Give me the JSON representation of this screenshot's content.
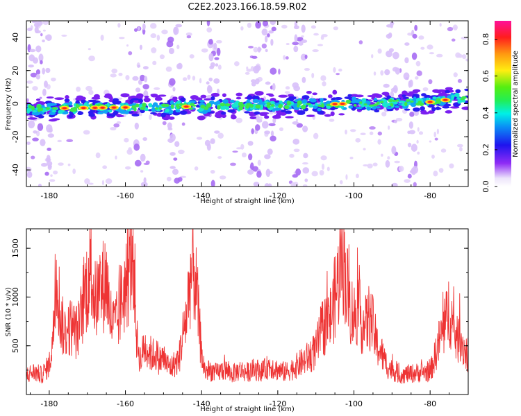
{
  "title": "C2E2.2023.166.18.59.R02",
  "chart_data": [
    {
      "type": "heatmap",
      "xlabel": "Height of straight line (km)",
      "ylabel": "Frequency (Hz)",
      "xlim": [
        -186,
        -70
      ],
      "ylim": [
        -50,
        50
      ],
      "xticks": [
        -180,
        -160,
        -140,
        -120,
        -100,
        -80
      ],
      "yticks": [
        -40,
        -20,
        0,
        20,
        40
      ],
      "colorbar": {
        "label": "Normalized spectral amplitude",
        "range": [
          0.0,
          0.9
        ],
        "ticks": [
          0.0,
          0.2,
          0.4,
          0.6,
          0.8
        ],
        "colormap": "rainbow (white - purple - blue - cyan - green - yellow - orange - red - magenta)"
      },
      "features": {
        "main_band": {
          "description": "horizontal band near 0 Hz spanning full height range",
          "frequency_offset_hz": [
            [
              -186,
              -3
            ],
            [
              -150,
              -2
            ],
            [
              -120,
              -1
            ],
            [
              -100,
              0
            ],
            [
              -80,
              1
            ],
            [
              -70,
              4
            ]
          ],
          "high_amplitude_km": [
            -176,
            -171,
            -168,
            -166,
            -163,
            -160,
            -144,
            -105,
            -103,
            -80,
            -76
          ]
        },
        "vertical_streaks_km": [
          -184,
          -181,
          -156,
          -147,
          -137,
          -126,
          -122,
          -114,
          -90,
          -85
        ]
      }
    },
    {
      "type": "line",
      "xlabel": "Height of straight line (km)",
      "ylabel": "SNR (10 * v/v)",
      "xlim": [
        -186,
        -70
      ],
      "ylim": [
        0,
        1700
      ],
      "xticks": [
        -180,
        -160,
        -140,
        -120,
        -100,
        -80
      ],
      "yticks": [
        500,
        1000,
        1500
      ],
      "line_color": "#ee3333",
      "series": [
        {
          "x": [
            -186,
            -184,
            -182,
            -180,
            -179,
            -178,
            -177,
            -176,
            -175,
            -174,
            -173,
            -172,
            -171,
            -170,
            -169,
            -168,
            -167,
            -166,
            -165,
            -164,
            -163,
            -162,
            -161,
            -160,
            -159,
            -158,
            -157,
            -156,
            -155,
            -154,
            -153,
            -152,
            -151,
            -150,
            -149,
            -148,
            -147,
            -146,
            -145,
            -144,
            -143,
            -142,
            -141,
            -140,
            -139,
            -138,
            -136,
            -134,
            -132,
            -130,
            -128,
            -126,
            -124,
            -122,
            -120,
            -118,
            -116,
            -114,
            -112,
            -110,
            -109,
            -108,
            -107,
            -106,
            -105,
            -104,
            -103,
            -102,
            -101,
            -100,
            -99,
            -98,
            -97,
            -96,
            -95,
            -94,
            -93,
            -92,
            -91,
            -90,
            -89,
            -88,
            -86,
            -84,
            -82,
            -80,
            -79,
            -78,
            -77,
            -76,
            -75,
            -74,
            -73,
            -72,
            -71,
            -70
          ],
          "y": [
            200,
            230,
            200,
            300,
            600,
            1300,
            750,
            650,
            680,
            700,
            640,
            700,
            980,
            1150,
            1300,
            950,
            1050,
            1100,
            1200,
            800,
            700,
            750,
            1000,
            1100,
            1250,
            1600,
            550,
            350,
            500,
            450,
            400,
            420,
            350,
            380,
            300,
            280,
            320,
            350,
            600,
            800,
            1200,
            1300,
            900,
            400,
            230,
            250,
            220,
            260,
            210,
            250,
            230,
            260,
            240,
            300,
            250,
            230,
            270,
            320,
            380,
            450,
            600,
            700,
            750,
            800,
            1000,
            1200,
            1500,
            1150,
            900,
            800,
            900,
            750,
            700,
            800,
            700,
            500,
            450,
            350,
            280,
            250,
            230,
            200,
            210,
            220,
            230,
            230,
            350,
            500,
            620,
            700,
            900,
            700,
            550,
            600,
            450,
            400
          ]
        }
      ]
    }
  ]
}
